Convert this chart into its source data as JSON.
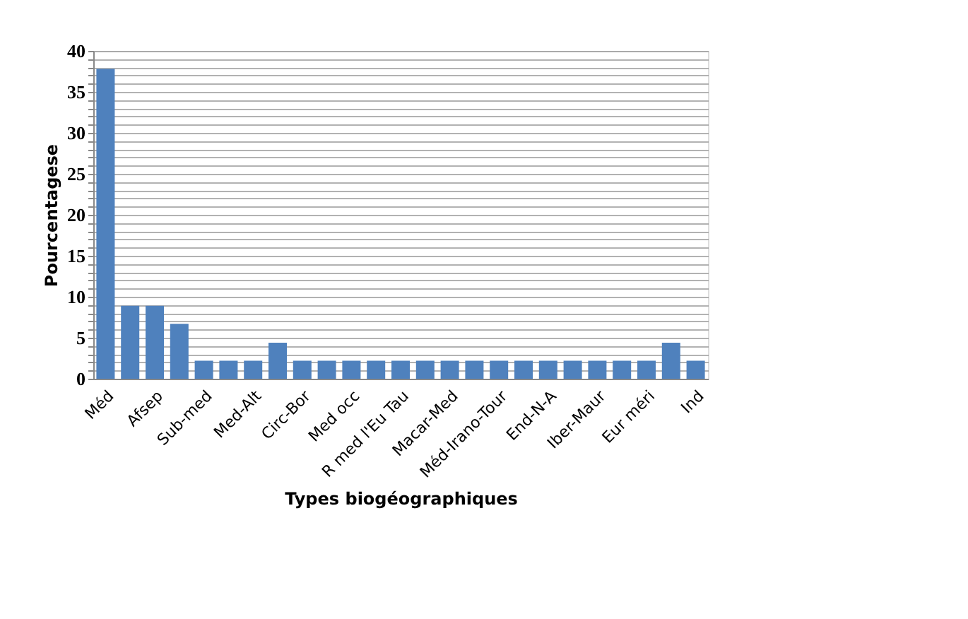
{
  "chart_data": {
    "type": "bar",
    "xlabel": "Types biogéographiques",
    "ylabel": "Pourcentagese",
    "categories": [
      "Méd",
      null,
      "Afsep",
      null,
      "Sub-med",
      null,
      "Med-Alt",
      null,
      "Circ-Bor",
      null,
      "Med occ",
      null,
      "R med l'Eu Tau",
      null,
      "Macar-Med",
      null,
      "Méd-Irano-Tour",
      null,
      "End-N-A",
      null,
      "Iber-Maur",
      null,
      "Eur méri",
      null,
      "Ind"
    ],
    "values": [
      37.8,
      8.9,
      8.9,
      6.7,
      2.2,
      2.2,
      2.2,
      4.4,
      2.2,
      2.2,
      2.2,
      2.2,
      2.2,
      2.2,
      2.2,
      2.2,
      2.2,
      2.2,
      2.2,
      2.2,
      2.2,
      2.2,
      2.2,
      4.4,
      2.2
    ],
    "color": "#4f81bd",
    "ylim": [
      0,
      40
    ],
    "yticks": [
      0,
      {
        "value": 1,
        "label": null
      },
      {
        "value": 2,
        "label": null
      },
      {
        "value": 3,
        "label": null
      },
      {
        "value": 4,
        "label": null
      },
      5,
      {
        "value": 6,
        "label": null
      },
      {
        "value": 7,
        "label": null
      },
      {
        "value": 8,
        "label": null
      },
      {
        "value": 9,
        "label": null
      },
      10,
      {
        "value": 11,
        "label": null
      },
      {
        "value": 12,
        "label": null
      },
      {
        "value": 13,
        "label": null
      },
      {
        "value": 14,
        "label": null
      },
      15,
      {
        "value": 16,
        "label": null
      },
      {
        "value": 17,
        "label": null
      },
      {
        "value": 18,
        "label": null
      },
      {
        "value": 19,
        "label": null
      },
      20,
      {
        "value": 21,
        "label": null
      },
      {
        "value": 22,
        "label": null
      },
      {
        "value": 23,
        "label": null
      },
      {
        "value": 24,
        "label": null
      },
      25,
      {
        "value": 26,
        "label": null
      },
      {
        "value": 27,
        "label": null
      },
      {
        "value": 28,
        "label": null
      },
      {
        "value": 29,
        "label": null
      },
      30,
      {
        "value": 31,
        "label": null
      },
      {
        "value": 32,
        "label": null
      },
      {
        "value": 33,
        "label": null
      },
      {
        "value": 34,
        "label": null
      },
      35,
      {
        "value": 36,
        "label": null
      },
      {
        "value": 37,
        "label": null
      },
      {
        "value": 38,
        "label": null
      },
      {
        "value": 39,
        "label": null
      },
      40
    ],
    "grid": true
  }
}
